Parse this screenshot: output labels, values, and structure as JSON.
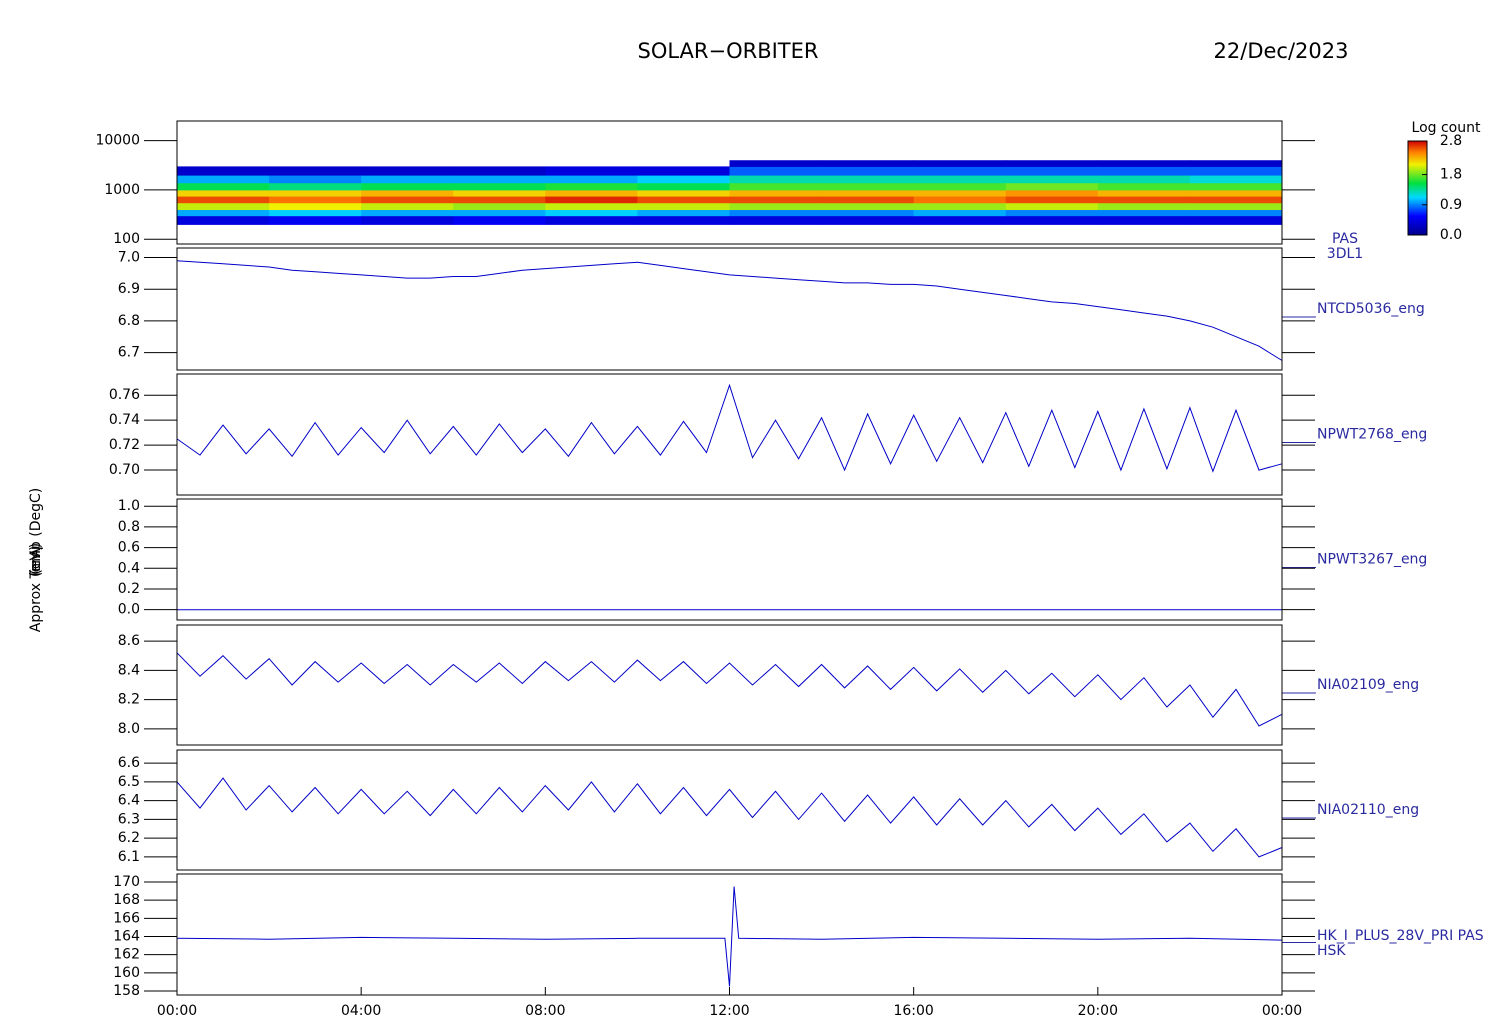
{
  "chart_data": [
    {
      "type": "heatmap",
      "title": "SOLAR−ORBITER",
      "date": "22/Dec/2023",
      "y_label": "(eV)",
      "log": true,
      "ylim": [
        80,
        25000
      ],
      "yticks": [
        100,
        1000,
        10000
      ],
      "xlim": [
        0,
        24
      ],
      "x_edges": [
        0,
        2,
        4,
        6,
        8,
        10,
        12,
        14,
        16,
        18,
        20,
        22,
        24
      ],
      "y_edges": [
        200,
        300,
        400,
        550,
        750,
        1000,
        1400,
        2000,
        3000,
        4000
      ],
      "z": [
        [
          0.4,
          1.0,
          2.0,
          2.6,
          2.2,
          1.5,
          1.0,
          0.3,
          null
        ],
        [
          0.5,
          1.1,
          2.1,
          2.5,
          2.2,
          1.4,
          0.9,
          0.3,
          null
        ],
        [
          0.4,
          1.0,
          2.0,
          2.6,
          2.3,
          1.5,
          1.0,
          0.3,
          null
        ],
        [
          0.5,
          1.0,
          1.9,
          2.6,
          2.2,
          1.5,
          1.0,
          0.3,
          null
        ],
        [
          0.4,
          1.1,
          2.0,
          2.7,
          2.3,
          1.6,
          1.0,
          0.4,
          null
        ],
        [
          0.4,
          1.0,
          2.0,
          2.6,
          2.2,
          1.5,
          1.1,
          0.4,
          null
        ],
        [
          0.4,
          0.9,
          1.9,
          2.6,
          2.3,
          1.7,
          1.3,
          0.8,
          0.3
        ],
        [
          0.4,
          0.9,
          1.9,
          2.6,
          2.3,
          1.7,
          1.3,
          0.8,
          0.3
        ],
        [
          0.4,
          1.0,
          1.9,
          2.5,
          2.3,
          1.7,
          1.3,
          0.8,
          0.3
        ],
        [
          0.4,
          0.9,
          2.0,
          2.6,
          2.4,
          1.8,
          1.3,
          0.8,
          0.3
        ],
        [
          0.4,
          0.9,
          1.9,
          2.6,
          2.3,
          1.7,
          1.3,
          0.8,
          0.3
        ],
        [
          0.4,
          0.9,
          1.9,
          2.6,
          2.3,
          1.7,
          1.2,
          0.8,
          0.3
        ]
      ],
      "colorbar": {
        "label": "Log count",
        "lim": [
          0,
          2.8
        ],
        "ticks": [
          {
            "value": 0,
            "label": "0.0"
          },
          0.9,
          1.8,
          2.8
        ]
      },
      "right_labels": [
        "PAS",
        "3DL1"
      ]
    },
    {
      "type": "line",
      "y_label": "Approx Temp (DegC)",
      "xlim": [
        0,
        24
      ],
      "ylim": [
        6.645,
        7.03
      ],
      "yticks": [
        {
          "value": 7,
          "label": "7.0"
        },
        6.9,
        6.8,
        6.7
      ],
      "x": [
        0,
        0.5,
        1,
        1.5,
        2,
        2.5,
        3,
        3.5,
        4,
        4.5,
        5,
        5.5,
        6,
        6.5,
        7,
        7.5,
        8,
        8.5,
        9,
        9.5,
        10,
        10.5,
        11,
        11.5,
        12,
        12.5,
        13,
        13.5,
        14,
        14.5,
        15,
        15.5,
        16,
        16.5,
        17,
        17.5,
        18,
        18.5,
        19,
        19.5,
        20,
        20.5,
        21,
        21.5,
        22,
        22.5,
        23,
        23.5,
        24
      ],
      "series": [
        {
          "name": "NTCD5036_eng",
          "color": "#0000c8",
          "values": [
            6.99,
            6.985,
            6.98,
            6.975,
            6.97,
            6.96,
            6.955,
            6.95,
            6.945,
            6.94,
            6.935,
            6.935,
            6.94,
            6.94,
            6.95,
            6.96,
            6.965,
            6.97,
            6.975,
            6.98,
            6.985,
            6.975,
            6.965,
            6.955,
            6.945,
            6.94,
            6.935,
            6.93,
            6.925,
            6.92,
            6.92,
            6.915,
            6.915,
            6.91,
            6.9,
            6.89,
            6.88,
            6.87,
            6.86,
            6.855,
            6.845,
            6.835,
            6.825,
            6.815,
            6.8,
            6.78,
            6.75,
            6.72,
            6.675
          ]
        }
      ]
    },
    {
      "type": "line",
      "xlim": [
        0,
        24
      ],
      "ylim": [
        0.68,
        0.777
      ],
      "yticks": [
        0.76,
        0.74,
        0.72,
        {
          "value": 0.7,
          "label": "0.70"
        }
      ],
      "x": [
        0,
        0.5,
        1,
        1.5,
        2,
        2.5,
        3,
        3.5,
        4,
        4.5,
        5,
        5.5,
        6,
        6.5,
        7,
        7.5,
        8,
        8.5,
        9,
        9.5,
        10,
        10.5,
        11,
        11.5,
        12,
        12.5,
        13,
        13.5,
        14,
        14.5,
        15,
        15.5,
        16,
        16.5,
        17,
        17.5,
        18,
        18.5,
        19,
        19.5,
        20,
        20.5,
        21,
        21.5,
        22,
        22.5,
        23,
        23.5,
        24
      ],
      "series": [
        {
          "name": "NPWT2768_eng",
          "color": "#0000c8",
          "values": [
            0.725,
            0.712,
            0.736,
            0.713,
            0.733,
            0.711,
            0.738,
            0.712,
            0.734,
            0.714,
            0.74,
            0.713,
            0.735,
            0.712,
            0.737,
            0.714,
            0.733,
            0.711,
            0.738,
            0.713,
            0.735,
            0.712,
            0.739,
            0.714,
            0.768,
            0.71,
            0.74,
            0.709,
            0.742,
            0.7,
            0.745,
            0.705,
            0.744,
            0.707,
            0.742,
            0.706,
            0.746,
            0.703,
            0.748,
            0.702,
            0.747,
            0.7,
            0.749,
            0.701,
            0.75,
            0.699,
            0.748,
            0.7,
            0.705
          ]
        }
      ]
    },
    {
      "type": "line",
      "xlim": [
        0,
        24
      ],
      "ylim": [
        -0.1,
        1.07
      ],
      "yticks": [
        {
          "value": 1,
          "label": "1.0"
        },
        0.8,
        0.6,
        0.4,
        0.2,
        {
          "value": 0,
          "label": "0.0"
        }
      ],
      "x": [
        0,
        24
      ],
      "series": [
        {
          "name": "NPWT3267_eng",
          "color": "#0000c8",
          "values": [
            0,
            0
          ]
        }
      ]
    },
    {
      "type": "line",
      "xlim": [
        0,
        24
      ],
      "ylim": [
        7.89,
        8.71
      ],
      "yticks": [
        8.6,
        8.4,
        8.2,
        {
          "value": 8,
          "label": "8.0"
        }
      ],
      "x": [
        0,
        0.5,
        1,
        1.5,
        2,
        2.5,
        3,
        3.5,
        4,
        4.5,
        5,
        5.5,
        6,
        6.5,
        7,
        7.5,
        8,
        8.5,
        9,
        9.5,
        10,
        10.5,
        11,
        11.5,
        12,
        12.5,
        13,
        13.5,
        14,
        14.5,
        15,
        15.5,
        16,
        16.5,
        17,
        17.5,
        18,
        18.5,
        19,
        19.5,
        20,
        20.5,
        21,
        21.5,
        22,
        22.5,
        23,
        23.5,
        24
      ],
      "series": [
        {
          "name": "NIA02109_eng",
          "color": "#0000c8",
          "values": [
            8.52,
            8.36,
            8.5,
            8.34,
            8.48,
            8.3,
            8.46,
            8.32,
            8.45,
            8.31,
            8.44,
            8.3,
            8.44,
            8.32,
            8.45,
            8.31,
            8.46,
            8.33,
            8.46,
            8.32,
            8.47,
            8.33,
            8.46,
            8.31,
            8.45,
            8.3,
            8.44,
            8.29,
            8.44,
            8.28,
            8.43,
            8.27,
            8.42,
            8.26,
            8.41,
            8.25,
            8.4,
            8.24,
            8.38,
            8.22,
            8.37,
            8.2,
            8.35,
            8.15,
            8.3,
            8.08,
            8.27,
            8.02,
            8.1
          ]
        }
      ]
    },
    {
      "type": "line",
      "xlim": [
        0,
        24
      ],
      "ylim": [
        6.03,
        6.67
      ],
      "yticks": [
        6.6,
        6.5,
        6.4,
        6.3,
        6.2,
        6.1
      ],
      "x": [
        0,
        0.5,
        1,
        1.5,
        2,
        2.5,
        3,
        3.5,
        4,
        4.5,
        5,
        5.5,
        6,
        6.5,
        7,
        7.5,
        8,
        8.5,
        9,
        9.5,
        10,
        10.5,
        11,
        11.5,
        12,
        12.5,
        13,
        13.5,
        14,
        14.5,
        15,
        15.5,
        16,
        16.5,
        17,
        17.5,
        18,
        18.5,
        19,
        19.5,
        20,
        20.5,
        21,
        21.5,
        22,
        22.5,
        23,
        23.5,
        24
      ],
      "series": [
        {
          "name": "NIA02110_eng",
          "color": "#0000c8",
          "values": [
            6.5,
            6.36,
            6.52,
            6.35,
            6.48,
            6.34,
            6.47,
            6.33,
            6.46,
            6.33,
            6.45,
            6.32,
            6.46,
            6.33,
            6.47,
            6.34,
            6.48,
            6.35,
            6.5,
            6.34,
            6.49,
            6.33,
            6.47,
            6.32,
            6.46,
            6.31,
            6.45,
            6.3,
            6.44,
            6.29,
            6.43,
            6.28,
            6.42,
            6.27,
            6.41,
            6.27,
            6.4,
            6.26,
            6.38,
            6.24,
            6.36,
            6.22,
            6.33,
            6.18,
            6.28,
            6.13,
            6.25,
            6.1,
            6.15
          ]
        }
      ]
    },
    {
      "type": "line",
      "y_label": "(mA)",
      "xlim": [
        0,
        24
      ],
      "ylim": [
        157.56,
        170.88
      ],
      "yticks": [
        170,
        168,
        166,
        164,
        162,
        160,
        158
      ],
      "xticks": [
        {
          "value": 0,
          "label": "00:00"
        },
        {
          "value": 4,
          "label": "04:00"
        },
        {
          "value": 8,
          "label": "08:00"
        },
        {
          "value": 12,
          "label": "12:00"
        },
        {
          "value": 16,
          "label": "16:00"
        },
        {
          "value": 20,
          "label": "20:00"
        },
        {
          "value": 24,
          "label": "00:00"
        }
      ],
      "x": [
        0,
        2,
        4,
        6,
        8,
        10,
        11.9,
        12.0,
        12.1,
        12.2,
        14,
        16,
        18,
        20,
        22,
        24
      ],
      "series": [
        {
          "name": "HK_I_PLUS_28V_PRI PAS",
          "color": "#0000c8",
          "values": [
            163.8,
            163.7,
            163.9,
            163.8,
            163.7,
            163.8,
            163.8,
            158.5,
            169.5,
            163.8,
            163.7,
            163.9,
            163.8,
            163.7,
            163.8,
            163.6
          ]
        }
      ],
      "right_labels": [
        "HSK"
      ]
    }
  ]
}
